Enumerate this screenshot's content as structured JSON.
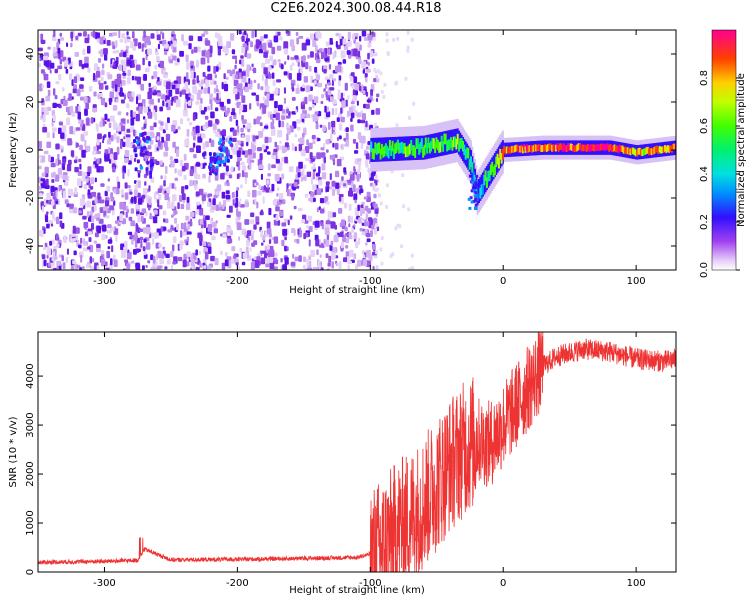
{
  "title": "C2E6.2024.300.08.44.R18",
  "chart_data": [
    {
      "type": "heatmap",
      "xlabel": "Height of straight line (km)",
      "ylabel": "Frequency (Hz)",
      "xlim": [
        -350,
        130
      ],
      "ylim": [
        -50,
        50
      ],
      "xticks": [
        -300,
        -200,
        -100,
        0,
        100
      ],
      "yticks": [
        -40,
        -20,
        0,
        20,
        40
      ],
      "colorbar": {
        "label": "Normalized spectral amplitude",
        "range": [
          0,
          1
        ],
        "ticks": [
          0.0,
          0.2,
          0.4,
          0.6,
          0.8
        ]
      },
      "signal_band": {
        "description_points": [
          {
            "x": -100,
            "f": 0,
            "amp": 0.45
          },
          {
            "x": -60,
            "f": 1,
            "amp": 0.5
          },
          {
            "x": -35,
            "f": 4,
            "amp": 0.55
          },
          {
            "x": -25,
            "f": -5,
            "amp": 0.4
          },
          {
            "x": -20,
            "f": -18,
            "amp": 0.25
          },
          {
            "x": 0,
            "f": 0,
            "amp": 0.8
          },
          {
            "x": 30,
            "f": 1,
            "amp": 0.85
          },
          {
            "x": 80,
            "f": 1,
            "amp": 0.95
          },
          {
            "x": 100,
            "f": -1,
            "amp": 0.7
          },
          {
            "x": 130,
            "f": 1,
            "amp": 0.8
          }
        ]
      }
    },
    {
      "type": "line",
      "xlabel": "Height of straight line (km)",
      "ylabel": "SNR (10 * v/v)",
      "xlim": [
        -350,
        130
      ],
      "ylim": [
        0,
        4900
      ],
      "xticks": [
        -300,
        -200,
        -100,
        0,
        100
      ],
      "yticks": [
        0,
        1000,
        2000,
        3000,
        4000
      ],
      "series": [
        {
          "color": "#ee3333",
          "x": [
            -350,
            -300,
            -275,
            -270,
            -250,
            -200,
            -150,
            -110,
            -100,
            -90,
            -80,
            -70,
            -60,
            -50,
            -40,
            -30,
            -20,
            -10,
            0,
            10,
            20,
            30,
            40,
            60,
            80,
            100,
            120,
            130
          ],
          "y": [
            180,
            200,
            220,
            450,
            230,
            240,
            260,
            280,
            350,
            550,
            900,
            1100,
            1400,
            1800,
            2200,
            2500,
            2700,
            2600,
            3000,
            3400,
            3800,
            4200,
            4400,
            4550,
            4500,
            4350,
            4300,
            4350
          ]
        }
      ]
    }
  ]
}
